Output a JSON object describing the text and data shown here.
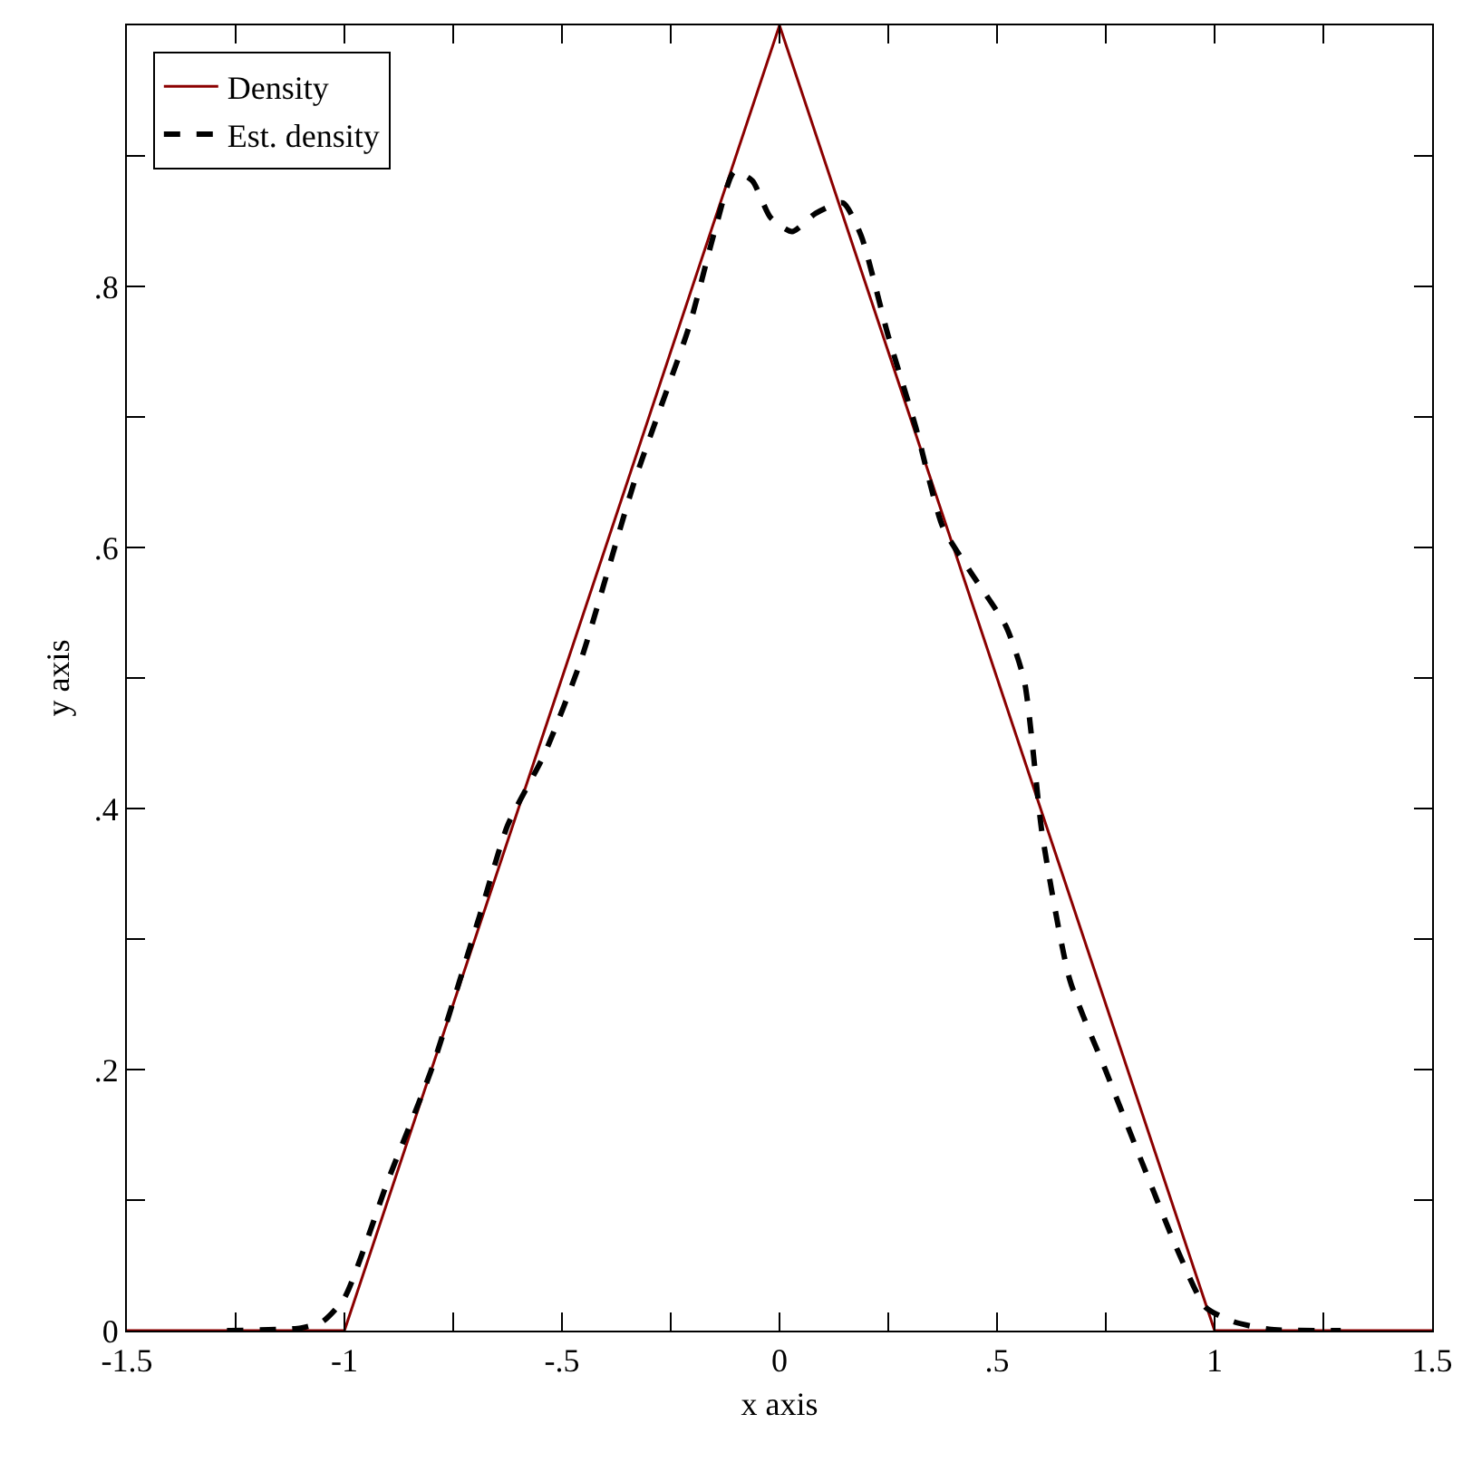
{
  "chart_data": {
    "type": "line",
    "xlabel": "x axis",
    "ylabel": "y axis",
    "xlim": [
      -1.5,
      1.5
    ],
    "ylim": [
      0,
      1
    ],
    "xticks": [
      -1.5,
      {
        "value": -1.25,
        "label": null
      },
      {
        "value": -1,
        "label": "-1"
      },
      {
        "value": -0.75,
        "label": null
      },
      {
        "value": -0.5,
        "label": "-.5"
      },
      {
        "value": -0.25,
        "label": null
      },
      0,
      {
        "value": 0.25,
        "label": null
      },
      {
        "value": 0.5,
        "label": ".5"
      },
      {
        "value": 0.75,
        "label": null
      },
      1,
      {
        "value": 1.25,
        "label": null
      },
      1.5
    ],
    "yticks": [
      0,
      {
        "value": 0.1,
        "label": null
      },
      {
        "value": 0.2,
        "label": ".2"
      },
      {
        "value": 0.3,
        "label": null
      },
      {
        "value": 0.4,
        "label": ".4"
      },
      {
        "value": 0.5,
        "label": null
      },
      {
        "value": 0.6,
        "label": ".6"
      },
      {
        "value": 0.7,
        "label": null
      },
      {
        "value": 0.8,
        "label": ".8"
      },
      {
        "value": 0.9,
        "label": null
      },
      {
        "value": 1,
        "label": null
      }
    ],
    "legend": "top left",
    "marker": "none",
    "series": [
      {
        "name": "Density",
        "color": "#8b0000",
        "line_style": "solid",
        "x": [
          -1.5,
          -1,
          0,
          1,
          1.5
        ],
        "values": [
          0,
          0,
          1,
          0,
          0
        ]
      },
      {
        "name": "Est. density",
        "color": "#000000",
        "line_style": "dashed",
        "x": [
          -1.27,
          -1.1,
          -1.05,
          -1.0,
          -0.9,
          -0.8,
          -0.69,
          -0.625,
          -0.54,
          -0.458,
          -0.333,
          -0.208,
          -0.146,
          -0.104,
          -0.0625,
          -0.021,
          0.029,
          0.083,
          0.146,
          0.1875,
          0.25,
          0.3125,
          0.375,
          0.4375,
          0.52,
          0.5625,
          0.604,
          0.667,
          0.75,
          0.833,
          0.917,
          0.979,
          1.042,
          1.125,
          1.29
        ],
        "values": [
          0,
          0.002,
          0.007,
          0.025,
          0.115,
          0.2,
          0.317,
          0.387,
          0.442,
          0.512,
          0.651,
          0.769,
          0.846,
          0.888,
          0.881,
          0.853,
          0.842,
          0.856,
          0.864,
          0.839,
          0.762,
          0.693,
          0.616,
          0.582,
          0.54,
          0.498,
          0.38,
          0.269,
          0.199,
          0.129,
          0.06,
          0.018,
          0.007,
          0.001,
          0
        ]
      }
    ]
  }
}
